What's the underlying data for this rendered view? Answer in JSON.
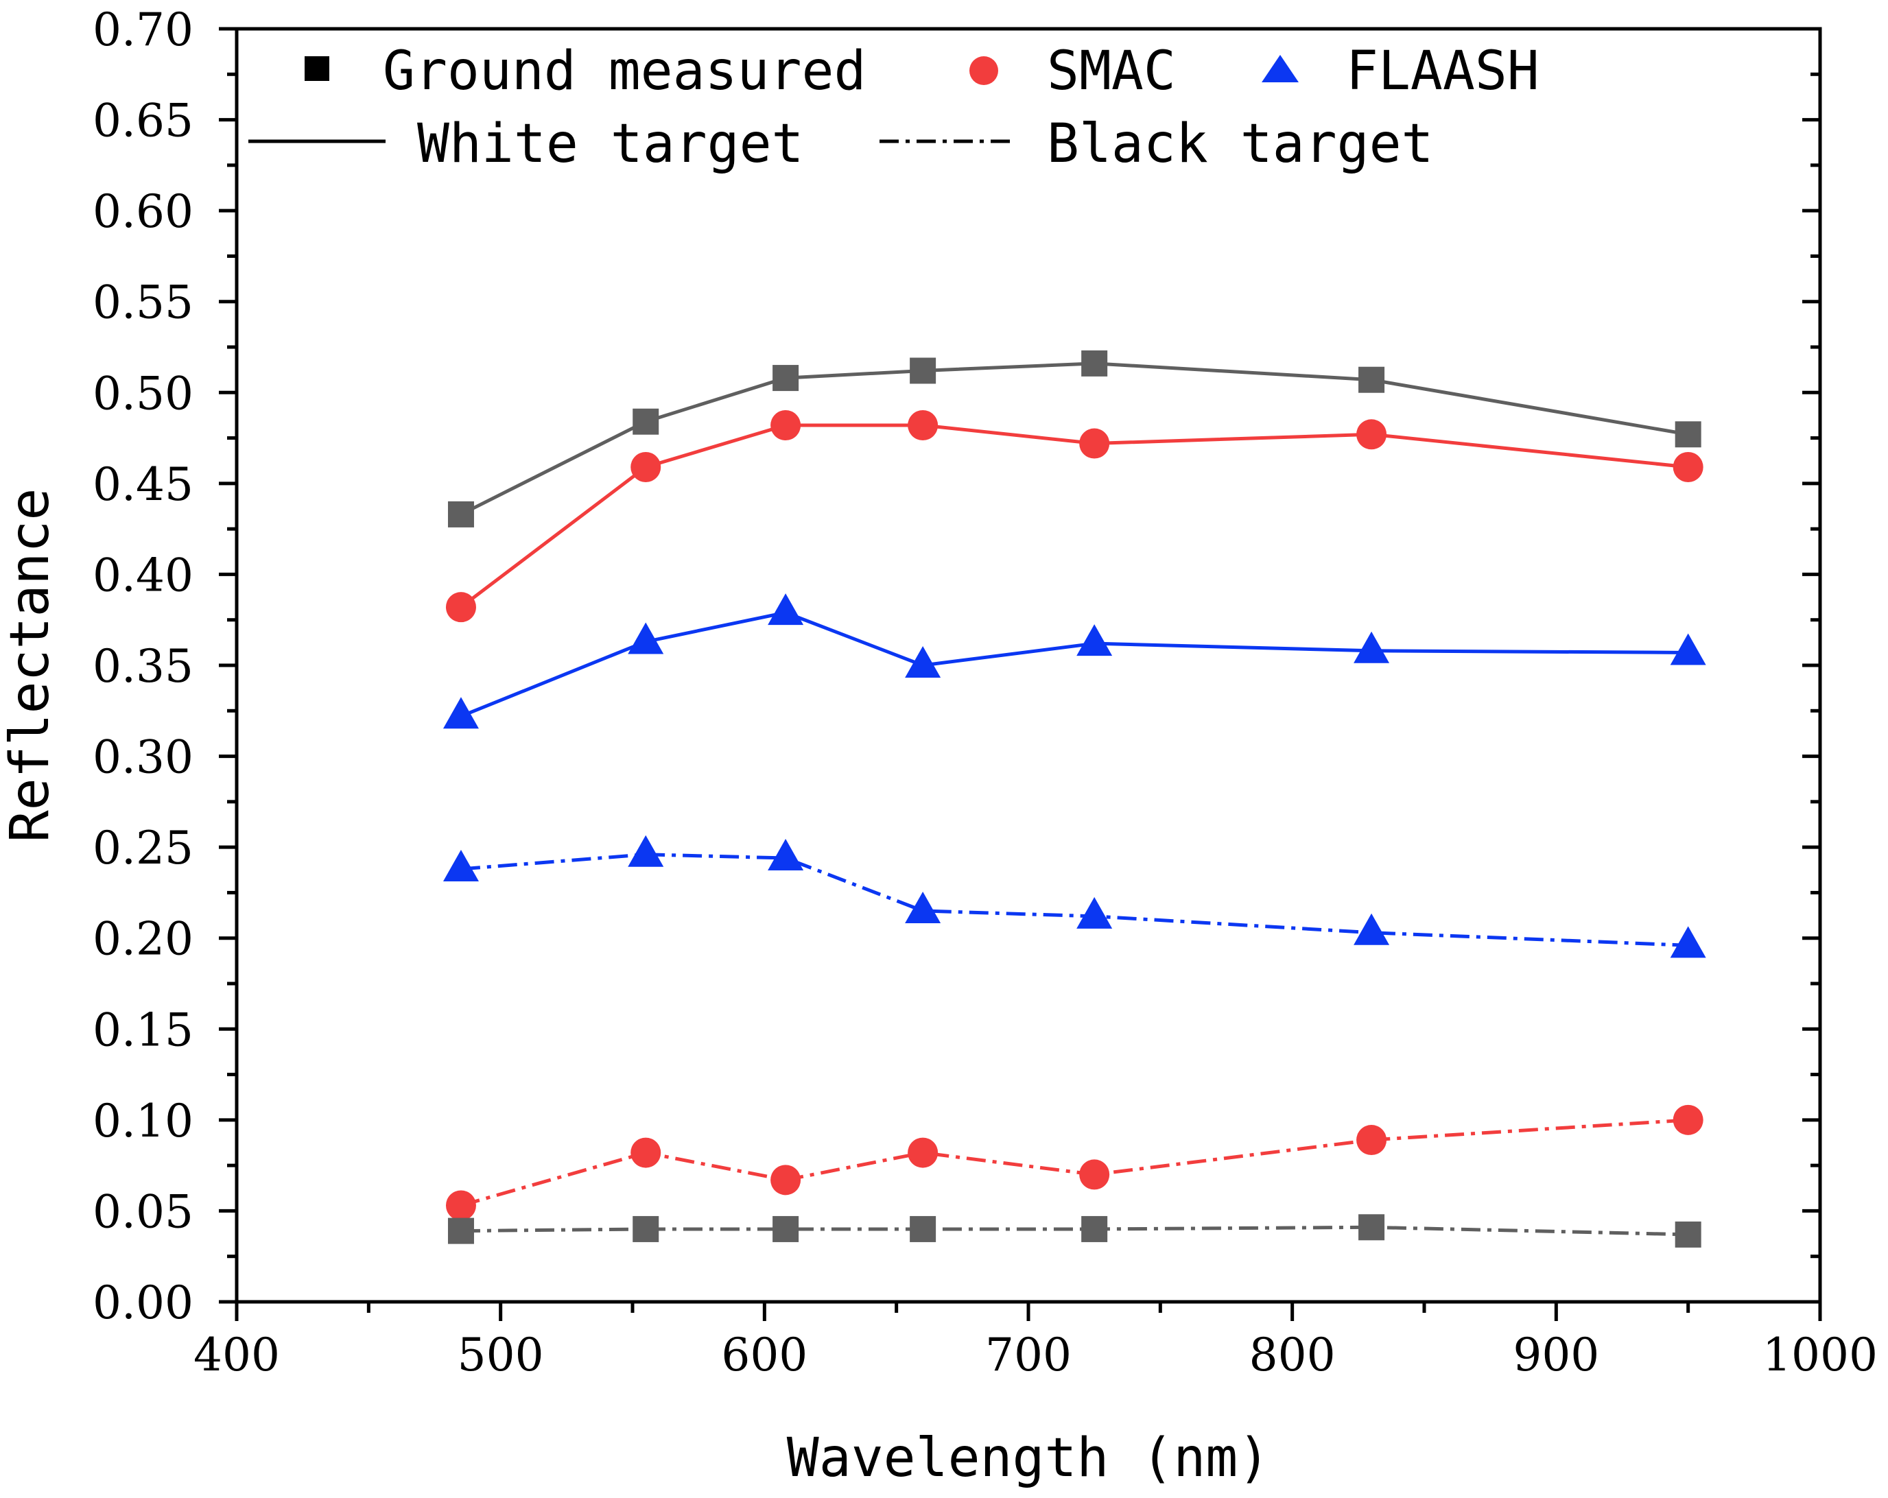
{
  "chart_data": {
    "type": "line",
    "title": "",
    "xlabel": "Wavelength (nm)",
    "ylabel": "Reflectance",
    "xlim": [
      400,
      1000
    ],
    "ylim": [
      0.0,
      0.7
    ],
    "x_ticks": [
      "400",
      "500",
      "600",
      "700",
      "800",
      "900",
      "1000"
    ],
    "y_ticks": [
      "0.00",
      "0.05",
      "0.10",
      "0.15",
      "0.20",
      "0.25",
      "0.30",
      "0.35",
      "0.40",
      "0.45",
      "0.50",
      "0.55",
      "0.60",
      "0.65",
      "0.70"
    ],
    "grid": false,
    "x": [
      485,
      555,
      608,
      660,
      725,
      830,
      950
    ],
    "series": [
      {
        "name": "Ground measured - White target",
        "method": "ground",
        "target": "white",
        "values": [
          0.433,
          0.484,
          0.508,
          0.512,
          0.516,
          0.507,
          0.477
        ]
      },
      {
        "name": "SMAC - White target",
        "method": "smac",
        "target": "white",
        "values": [
          0.382,
          0.459,
          0.482,
          0.482,
          0.472,
          0.477,
          0.459
        ]
      },
      {
        "name": "FLAASH - White target",
        "method": "flaash",
        "target": "white",
        "values": [
          0.322,
          0.363,
          0.379,
          0.35,
          0.362,
          0.358,
          0.357
        ]
      },
      {
        "name": "FLAASH - Black target",
        "method": "flaash",
        "target": "black",
        "values": [
          0.238,
          0.246,
          0.244,
          0.215,
          0.212,
          0.203,
          0.196
        ]
      },
      {
        "name": "SMAC - Black target",
        "method": "smac",
        "target": "black",
        "values": [
          0.053,
          0.082,
          0.067,
          0.082,
          0.07,
          0.089,
          0.1
        ]
      },
      {
        "name": "Ground measured - Black target",
        "method": "ground",
        "target": "black",
        "values": [
          0.039,
          0.04,
          0.04,
          0.04,
          0.04,
          0.041,
          0.037
        ]
      }
    ],
    "legend": {
      "placement": "top-left",
      "methods": [
        {
          "key": "ground",
          "label": "Ground measured",
          "marker": "square",
          "color": "#5f5f5f"
        },
        {
          "key": "smac",
          "label": "SMAC",
          "marker": "circle",
          "color": "#f23d3d"
        },
        {
          "key": "flaash",
          "label": "FLAASH",
          "marker": "triangle",
          "color": "#0b37f2"
        }
      ],
      "targets": [
        {
          "key": "white",
          "label": "White target",
          "line": "solid"
        },
        {
          "key": "black",
          "label": "Black target",
          "line": "dash-dot"
        }
      ]
    },
    "colors": {
      "ground": "#5f5f5f",
      "smac": "#f23d3d",
      "flaash": "#0b37f2",
      "legend_ground": "#000000"
    }
  }
}
